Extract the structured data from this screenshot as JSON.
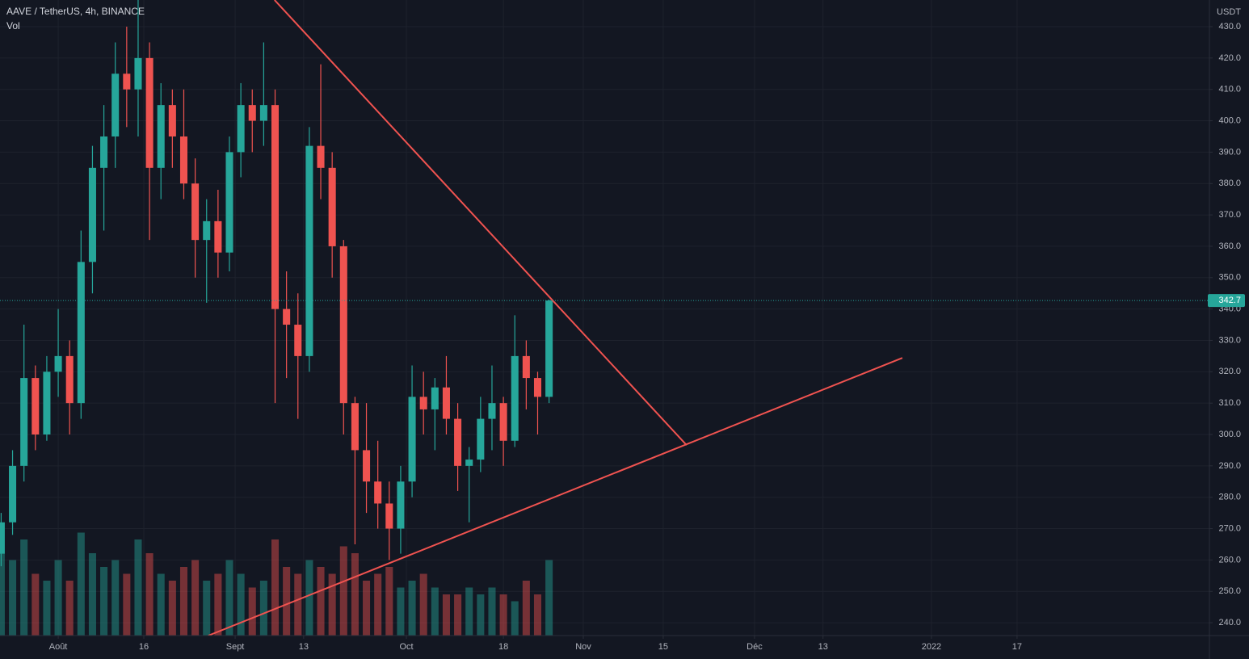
{
  "chart_data": {
    "type": "candlestick",
    "title": "AAVE / TetherUS, 4h, BINANCE",
    "volume_label": "Vol",
    "y_unit": "USDT",
    "x": [
      -10,
      -8,
      -6,
      -4,
      -2,
      0,
      2,
      4,
      6,
      8,
      10,
      12,
      14,
      16,
      18,
      20,
      22,
      24,
      26,
      28,
      30,
      32,
      34,
      36,
      38,
      40,
      42,
      44,
      46,
      48,
      50,
      52,
      54,
      56,
      58,
      60,
      62,
      64,
      66,
      68,
      70,
      72,
      74,
      76,
      78,
      80,
      82,
      84,
      86
    ],
    "open": [
      262,
      272,
      290,
      318,
      300,
      320,
      325,
      310,
      355,
      385,
      395,
      415,
      410,
      420,
      385,
      405,
      395,
      380,
      362,
      368,
      358,
      390,
      405,
      400,
      405,
      340,
      335,
      325,
      392,
      385,
      360,
      310,
      295,
      285,
      278,
      270,
      285,
      312,
      308,
      315,
      305,
      290,
      292,
      305,
      310,
      298,
      325,
      318,
      312
    ],
    "high": [
      275,
      295,
      335,
      322,
      325,
      340,
      330,
      365,
      392,
      405,
      425,
      430,
      440,
      425,
      412,
      410,
      410,
      388,
      375,
      378,
      395,
      412,
      410,
      425,
      410,
      352,
      345,
      398,
      418,
      390,
      362,
      312,
      310,
      298,
      285,
      290,
      322,
      320,
      318,
      325,
      310,
      296,
      312,
      322,
      312,
      338,
      330,
      320,
      343
    ],
    "low": [
      258,
      268,
      285,
      295,
      298,
      312,
      300,
      305,
      345,
      365,
      385,
      398,
      395,
      362,
      375,
      385,
      375,
      350,
      342,
      350,
      352,
      382,
      390,
      392,
      310,
      318,
      305,
      320,
      375,
      350,
      300,
      265,
      275,
      270,
      260,
      262,
      280,
      300,
      295,
      300,
      282,
      272,
      288,
      295,
      290,
      296,
      308,
      300,
      310
    ],
    "close": [
      272,
      290,
      318,
      300,
      320,
      325,
      310,
      355,
      385,
      395,
      415,
      410,
      420,
      385,
      405,
      395,
      380,
      362,
      368,
      358,
      390,
      405,
      400,
      405,
      340,
      335,
      325,
      392,
      385,
      360,
      310,
      295,
      285,
      278,
      270,
      285,
      312,
      308,
      315,
      305,
      290,
      292,
      305,
      310,
      298,
      325,
      318,
      312,
      342.7
    ],
    "volume": [
      60,
      55,
      70,
      45,
      40,
      55,
      40,
      75,
      60,
      50,
      55,
      45,
      70,
      60,
      45,
      40,
      50,
      55,
      40,
      45,
      55,
      45,
      35,
      40,
      70,
      50,
      45,
      55,
      50,
      45,
      65,
      60,
      40,
      45,
      50,
      35,
      40,
      45,
      35,
      30,
      30,
      35,
      30,
      35,
      30,
      25,
      40,
      30,
      55
    ],
    "vlim": [
      0,
      100
    ],
    "up_color": "#26a69a",
    "down_color": "#ef5350",
    "xlim": [
      -10.2,
      201.7
    ],
    "xticks": [
      {
        "value": 0,
        "label": "Août"
      },
      {
        "value": 15,
        "label": "16"
      },
      {
        "value": 31,
        "label": "Sept"
      },
      {
        "value": 43,
        "label": "13"
      },
      {
        "value": 61,
        "label": "Oct"
      },
      {
        "value": 78,
        "label": "18"
      },
      {
        "value": 92,
        "label": "Nov"
      },
      {
        "value": 106,
        "label": "15"
      },
      {
        "value": 122,
        "label": "Déc"
      },
      {
        "value": 134,
        "label": "13"
      },
      {
        "value": 153,
        "label": "2022"
      },
      {
        "value": 168,
        "label": "17"
      }
    ],
    "ylim": [
      235.9,
      438.5
    ],
    "yticks": [
      {
        "value": 240,
        "label": "240.0"
      },
      {
        "value": 250,
        "label": "250.0"
      },
      {
        "value": 260,
        "label": "260.0"
      },
      {
        "value": 270,
        "label": "270.0"
      },
      {
        "value": 280,
        "label": "280.0"
      },
      {
        "value": 290,
        "label": "290.0"
      },
      {
        "value": 300,
        "label": "300.0"
      },
      {
        "value": 310,
        "label": "310.0"
      },
      {
        "value": 320,
        "label": "320.0"
      },
      {
        "value": 330,
        "label": "330.0"
      },
      {
        "value": 340,
        "label": "340.0"
      },
      {
        "value": 350,
        "label": "350.0"
      },
      {
        "value": 360,
        "label": "360.0"
      },
      {
        "value": 370,
        "label": "370.0"
      },
      {
        "value": 380,
        "label": "380.0"
      },
      {
        "value": 390,
        "label": "390.0"
      },
      {
        "value": 400,
        "label": "400.0"
      },
      {
        "value": 410,
        "label": "410.0"
      },
      {
        "value": 420,
        "label": "420.0"
      },
      {
        "value": 430,
        "label": "430.0"
      }
    ],
    "last_price": 342.7,
    "last_price_color": "#26a69a",
    "trendlines": [
      {
        "color": "#f05350",
        "points": [
          [
            37.9,
            438.5
          ],
          [
            110.1,
            296.6
          ]
        ]
      },
      {
        "color": "#f05350",
        "points": [
          [
            26.3,
            235.9
          ],
          [
            147.9,
            324.4
          ]
        ]
      }
    ],
    "grid": true
  }
}
